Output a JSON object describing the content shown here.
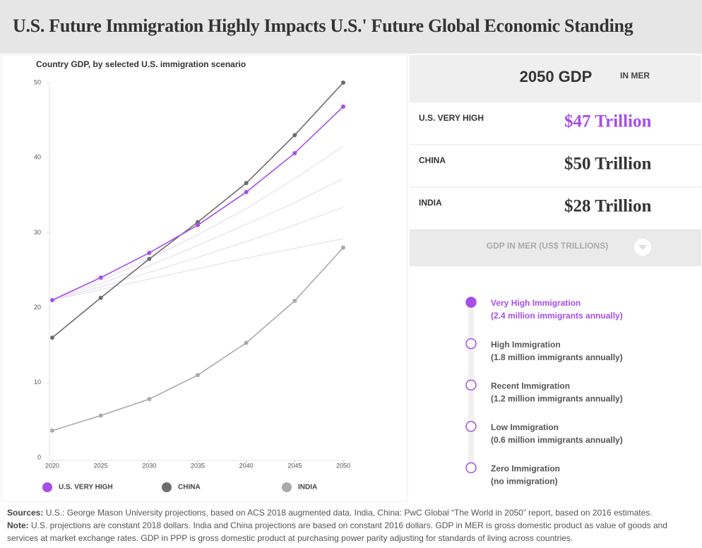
{
  "header": {
    "title": "U.S. Future Immigration Highly Impacts U.S.' Future Global Economic Standing"
  },
  "chart_data": {
    "type": "line",
    "title": "Country GDP, by selected U.S. immigration scenario",
    "x": [
      2020,
      2025,
      2030,
      2035,
      2040,
      2045,
      2050
    ],
    "series": [
      {
        "name": "U.S. VERY HIGH",
        "color": "#a64ee8",
        "values": [
          21,
          24,
          27.3,
          31,
          35.4,
          40.6,
          46.8
        ]
      },
      {
        "name": "CHINA",
        "color": "#6d6d6d",
        "values": [
          16,
          21.3,
          26.5,
          31.4,
          36.6,
          43,
          50
        ]
      },
      {
        "name": "INDIA",
        "color": "#aaaaaa",
        "values": [
          3.6,
          5.6,
          7.8,
          11,
          15.3,
          20.9,
          28
        ]
      }
    ],
    "background_color": "#ebe5f2",
    "background_series": [
      {
        "values": [
          21,
          23.6,
          26.5,
          29.7,
          33.2,
          37.2,
          41.5
        ]
      },
      {
        "values": [
          21,
          23.2,
          25.6,
          28.3,
          31.1,
          34,
          37.2
        ]
      },
      {
        "values": [
          21,
          22.8,
          24.7,
          26.7,
          28.8,
          31,
          33.4
        ]
      },
      {
        "values": [
          21,
          22.4,
          23.8,
          25.2,
          26.6,
          27.9,
          29.2
        ]
      }
    ],
    "xlim": [
      2020,
      2050
    ],
    "xticks": [
      2020,
      2025,
      2030,
      2035,
      2040,
      2045,
      2050
    ],
    "ylim": [
      0,
      50
    ],
    "yticks": [
      0,
      10,
      20,
      30,
      40,
      50
    ],
    "grid": false
  },
  "panel": {
    "heading": "2050 GDP",
    "unit": "IN MER",
    "rows": [
      {
        "label": "U.S. VERY HIGH",
        "value": "$47 Trillion"
      },
      {
        "label": "CHINA",
        "value": "$50 Trillion"
      },
      {
        "label": "INDIA",
        "value": "$28 Trillion"
      }
    ],
    "dropdown": "GDP IN MER (US$ TRILLIONS)",
    "scenarios": [
      {
        "name": "Very High Immigration",
        "detail": "(2.4 million immigrants annually)"
      },
      {
        "name": "High Immigration",
        "detail": "(1.8 million immigrants annually)"
      },
      {
        "name": "Recent Immigration",
        "detail": "(1.2 million immigrants annually)"
      },
      {
        "name": "Low Immigration",
        "detail": "(0.6 million immigrants annually)"
      },
      {
        "name": "Zero Immigration",
        "detail": "(no immigration)"
      }
    ]
  },
  "footer": {
    "sources_label": "Sources:",
    "sources": "U.S.: George Mason University projections, based on ACS 2018 augmented data. India, China: PwC Global “The World in 2050” report, based on 2016 estimates.",
    "note_label": "Note:",
    "note": "U.S. projections are constant 2018 dollars. India and China projections are based on constant 2016 dollars. GDP in MER is gross domestic product as value of goods and services at market exchange rates. GDP in PPP is gross domestic product at purchasing power parity adjusting for standards of living across countries."
  }
}
